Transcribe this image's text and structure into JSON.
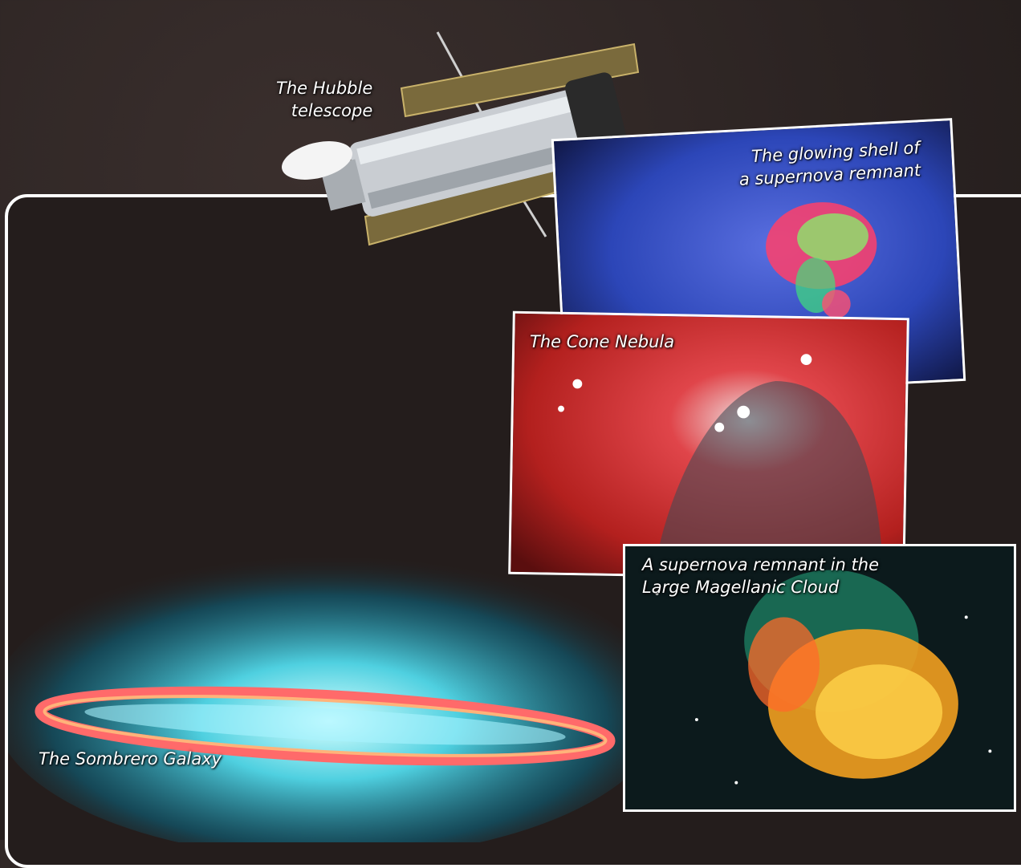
{
  "labels": {
    "hubble": "The Hubble\ntelescope",
    "supernova_shell": "The glowing shell of\na supernova remnant",
    "cone_nebula": "The Cone Nebula",
    "lmc_remnant": "A supernova remnant in the\nLarge Magellanic Cloud",
    "sombrero": "The Sombrero Galaxy"
  },
  "colors": {
    "frame": "#ffffff",
    "background": "#2b2322",
    "shell_blue": "#2f56c4",
    "cone_red": "#d8322a",
    "lmc_green": "#1d5a3f",
    "sombrero_cyan": "#3fc8d8",
    "sombrero_ring": "#f06060"
  }
}
